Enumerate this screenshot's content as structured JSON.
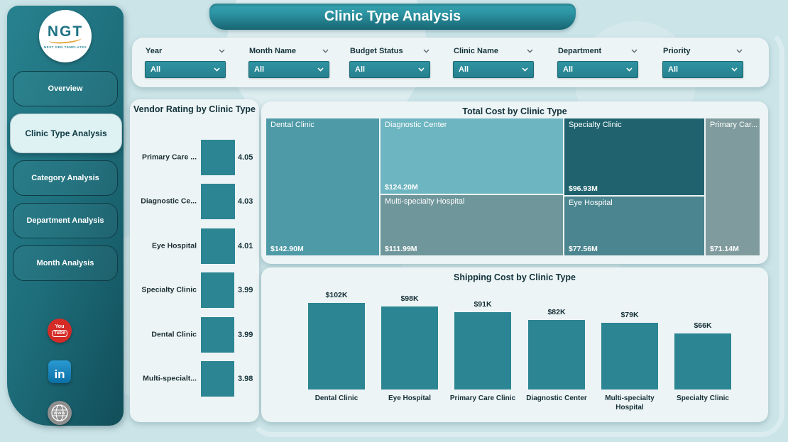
{
  "title": "Clinic Type Analysis",
  "logo": {
    "text": "NGT",
    "subtext": "NEXT GEN TEMPLATES"
  },
  "sidebar": {
    "items": [
      {
        "label": "Overview",
        "active": false
      },
      {
        "label": "Clinic Type Analysis",
        "active": true
      },
      {
        "label": "Category Analysis",
        "active": false
      },
      {
        "label": "Department Analysis",
        "active": false
      },
      {
        "label": "Month Analysis",
        "active": false
      }
    ]
  },
  "social": {
    "youtube_line1": "You",
    "youtube_line2": "Tube",
    "linkedin_text": "in",
    "website_text": "www"
  },
  "filters": [
    {
      "label": "Year",
      "value": "All"
    },
    {
      "label": "Month Name",
      "value": "All"
    },
    {
      "label": "Budget Status",
      "value": "All"
    },
    {
      "label": "Clinic Name",
      "value": "All"
    },
    {
      "label": "Department",
      "value": "All"
    },
    {
      "label": "Priority",
      "value": "All"
    }
  ],
  "colors": {
    "accent": "#2b8a99",
    "bar": "#2c8593",
    "sidebar_dark": "#114e59",
    "card_bg": "#edf4f5",
    "page_bg": "#cbe4e8"
  },
  "chart_data": [
    {
      "id": "vendor-rating",
      "type": "bar",
      "orientation": "horizontal",
      "title": "Vendor Rating by Clinic Type",
      "categories": [
        "Primary Care ...",
        "Diagnostic Ce...",
        "Eye Hospital",
        "Specialty Clinic",
        "Dental Clinic",
        "Multi-specialt..."
      ],
      "values": [
        4.05,
        4.03,
        4.01,
        3.99,
        3.99,
        3.98
      ],
      "value_labels": [
        "4.05",
        "4.03",
        "4.01",
        "3.99",
        "3.99",
        "3.98"
      ],
      "bar_color": "#2c8593",
      "legend": "none",
      "grid": false
    },
    {
      "id": "total-cost",
      "type": "treemap",
      "title": "Total Cost by Clinic Type",
      "items": [
        {
          "label": "Dental Clinic",
          "value": 142.9,
          "value_label": "$142.90M",
          "color": "#4e9aa7"
        },
        {
          "label": "Diagnostic Center",
          "value": 124.2,
          "value_label": "$124.20M",
          "color": "#6db5c0"
        },
        {
          "label": "Multi-specialty Hospital",
          "value": 111.99,
          "value_label": "$111.99M",
          "color": "#6f969b"
        },
        {
          "label": "Specialty Clinic",
          "value": 96.93,
          "value_label": "$96.93M",
          "color": "#20636f"
        },
        {
          "label": "Eye Hospital",
          "value": 77.56,
          "value_label": "$77.56M",
          "color": "#4b8590"
        },
        {
          "label": "Primary Car...",
          "value": 71.14,
          "value_label": "$71.14M",
          "color": "#7f9b9d"
        }
      ]
    },
    {
      "id": "shipping-cost",
      "type": "bar",
      "title": "Shipping Cost by Clinic Type",
      "categories": [
        "Dental Clinic",
        "Eye Hospital",
        "Primary Care Clinic",
        "Diagnostic Center",
        "Multi-specialty Hospital",
        "Specialty Clinic"
      ],
      "values": [
        102,
        98,
        91,
        82,
        79,
        66
      ],
      "value_labels": [
        "$102K",
        "$98K",
        "$91K",
        "$82K",
        "$79K",
        "$66K"
      ],
      "bar_color": "#2c8593",
      "legend": "none",
      "grid": false
    }
  ]
}
